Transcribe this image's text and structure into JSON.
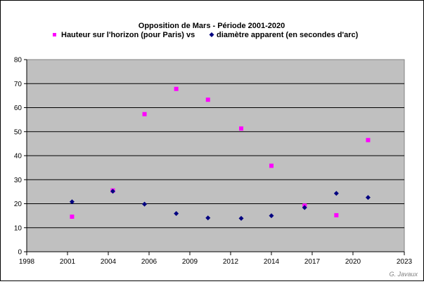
{
  "chart_data": {
    "type": "scatter",
    "title": "Opposition de Mars - Période 2001-2020",
    "series": [
      {
        "name": "Hauteur sur l'horizon (pour Paris) vs",
        "marker": "square",
        "color": "#ff00ff",
        "points": [
          [
            2001.0,
            14.6
          ],
          [
            2003.7,
            25.5
          ],
          [
            2005.8,
            57.3
          ],
          [
            2007.9,
            67.8
          ],
          [
            2010.0,
            63.3
          ],
          [
            2012.2,
            51.3
          ],
          [
            2014.2,
            35.8
          ],
          [
            2016.4,
            19.2
          ],
          [
            2018.5,
            15.2
          ],
          [
            2020.6,
            46.5
          ]
        ]
      },
      {
        "name": "diamètre apparent (en secondes d'arc)",
        "marker": "diamond",
        "color": "#000080",
        "points": [
          [
            2001.0,
            20.8
          ],
          [
            2003.7,
            25.2
          ],
          [
            2005.8,
            19.8
          ],
          [
            2007.9,
            15.9
          ],
          [
            2010.0,
            14.1
          ],
          [
            2012.2,
            13.9
          ],
          [
            2014.2,
            15.0
          ],
          [
            2016.4,
            18.4
          ],
          [
            2018.5,
            24.3
          ],
          [
            2020.6,
            22.6
          ]
        ]
      }
    ],
    "xlim": [
      1998,
      2023
    ],
    "ylim": [
      0,
      80
    ],
    "xticks": [
      {
        "v": 1998.0,
        "label": "1998"
      },
      {
        "v": 2000.7,
        "label": "2001"
      },
      {
        "v": 2003.4,
        "label": "2004"
      },
      {
        "v": 2006.1,
        "label": "2006"
      },
      {
        "v": 2008.8,
        "label": "2009"
      },
      {
        "v": 2011.5,
        "label": "2012"
      },
      {
        "v": 2014.2,
        "label": "2014"
      },
      {
        "v": 2016.9,
        "label": "2017"
      },
      {
        "v": 2019.6,
        "label": "2020"
      },
      {
        "v": 2023.0,
        "label": "2023"
      }
    ],
    "yticks": [
      0,
      10,
      20,
      30,
      40,
      50,
      60,
      70,
      80
    ],
    "grid": "horizontal",
    "legend_placement": "top",
    "plot_background": "#c0c0c0",
    "credit": "G. Javaux"
  }
}
